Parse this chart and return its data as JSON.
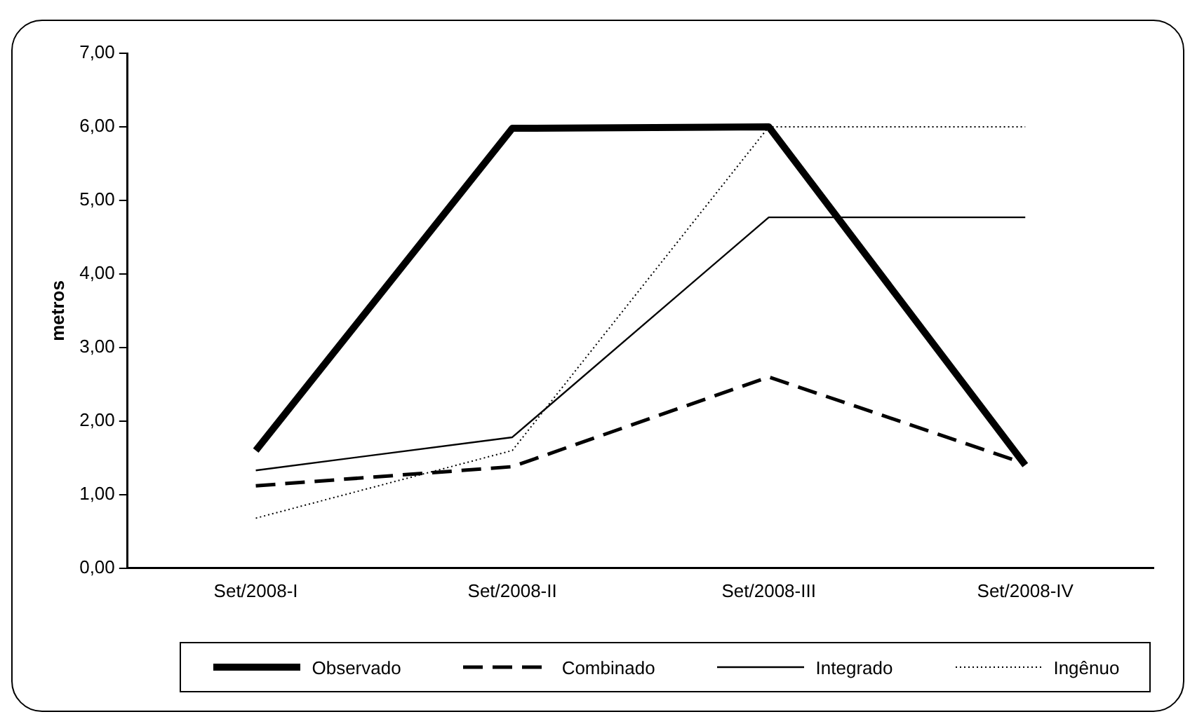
{
  "chart_data": {
    "type": "line",
    "ylabel": "metros",
    "categories": [
      "Set/2008-I",
      "Set/2008-II",
      "Set/2008-III",
      "Set/2008-IV"
    ],
    "ylim": [
      0,
      7
    ],
    "yticks": [
      {
        "value": 0,
        "label": "0,00"
      },
      {
        "value": 1,
        "label": "1,00"
      },
      {
        "value": 2,
        "label": "2,00"
      },
      {
        "value": 3,
        "label": "3,00"
      },
      {
        "value": 4,
        "label": "4,00"
      },
      {
        "value": 5,
        "label": "5,00"
      },
      {
        "value": 6,
        "label": "6,00"
      },
      {
        "value": 7,
        "label": "7,00"
      }
    ],
    "grid": false,
    "legend": "bottom",
    "marker": "none",
    "series": [
      {
        "name": "Observado",
        "color": "#000000",
        "line_style": "solid",
        "values": [
          1.6,
          5.98,
          6.0,
          1.4
        ]
      },
      {
        "name": "Combinado",
        "color": "#000000",
        "line_style": "dashed",
        "values": [
          1.12,
          1.38,
          2.6,
          1.42
        ]
      },
      {
        "name": "Integrado",
        "color": "#000000",
        "line_style": "solid",
        "values": [
          1.33,
          1.78,
          4.77,
          4.77
        ]
      },
      {
        "name": "Ingênuo",
        "color": "#000000",
        "line_style": "dotted",
        "values": [
          0.68,
          1.6,
          6.0,
          6.0
        ]
      }
    ]
  }
}
